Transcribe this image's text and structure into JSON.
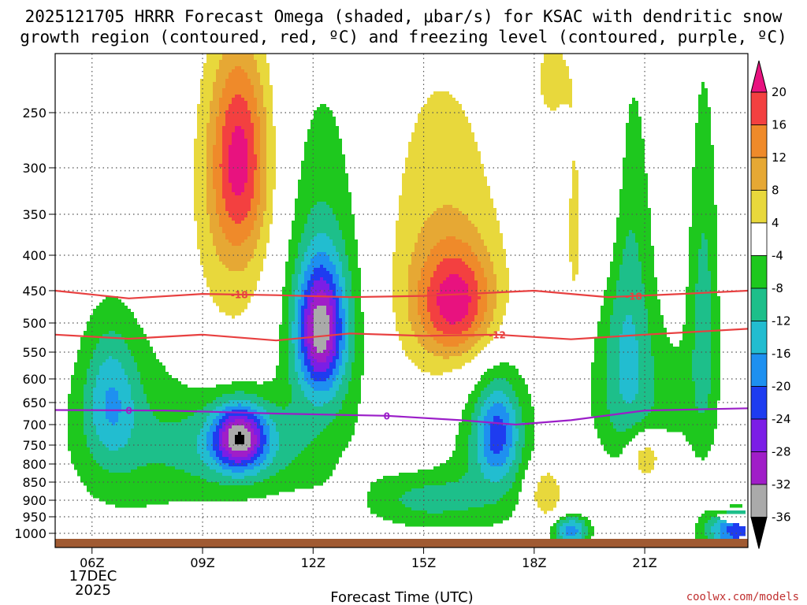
{
  "chart_data": {
    "type": "heatmap",
    "title_line1": "2025121705 HRRR Forecast Omega (shaded, μbar/s) for KSAC with dendritic snow",
    "title_line2": "growth region (contoured, red, ºC) and freezing level (contoured, purple, ºC)",
    "xlabel": "Forecast Time (UTC)",
    "x_ticks": [
      {
        "hour": 6,
        "label": "06Z"
      },
      {
        "hour": 9,
        "label": "09Z"
      },
      {
        "hour": 12,
        "label": "12Z"
      },
      {
        "hour": 15,
        "label": "15Z"
      },
      {
        "hour": 18,
        "label": "18Z"
      },
      {
        "hour": 21,
        "label": "21Z"
      }
    ],
    "date_label": [
      "17DEC",
      "2025"
    ],
    "xlim": [
      5,
      23.8
    ],
    "y_ticks": [
      250,
      300,
      350,
      400,
      450,
      500,
      550,
      600,
      650,
      700,
      750,
      800,
      850,
      900,
      950,
      1000
    ],
    "ylim_hpa": [
      200,
      1025
    ],
    "colorbar": {
      "labels": [
        "20",
        "16",
        "12",
        "8",
        "4",
        "-4",
        "-8",
        "-12",
        "-16",
        "-20",
        "-24",
        "-28",
        "-32",
        "-36"
      ],
      "bands": [
        {
          "min": 20,
          "max": 999,
          "color": "#e8127f"
        },
        {
          "min": 16,
          "max": 20,
          "color": "#f34040"
        },
        {
          "min": 12,
          "max": 16,
          "color": "#ef8a2a"
        },
        {
          "min": 8,
          "max": 12,
          "color": "#e6a834"
        },
        {
          "min": 4,
          "max": 8,
          "color": "#e8d83c"
        },
        {
          "min": -4,
          "max": 4,
          "color": "#ffffff"
        },
        {
          "min": -8,
          "max": -4,
          "color": "#1ec81e"
        },
        {
          "min": -12,
          "max": -8,
          "color": "#1dbf8a"
        },
        {
          "min": -16,
          "max": -12,
          "color": "#22bdd0"
        },
        {
          "min": -20,
          "max": -16,
          "color": "#1e90f0"
        },
        {
          "min": -24,
          "max": -20,
          "color": "#1e3cf0"
        },
        {
          "min": -28,
          "max": -24,
          "color": "#7b1ee6"
        },
        {
          "min": -32,
          "max": -28,
          "color": "#a01ec8"
        },
        {
          "min": -36,
          "max": -32,
          "color": "#aaaaaa"
        },
        {
          "min": -999,
          "max": -36,
          "color": "#000000"
        }
      ]
    },
    "omega_features": [
      {
        "hour": 10.0,
        "hpa": 290,
        "amp": 17.5,
        "sx": 0.55,
        "sy": 70
      },
      {
        "hour": 9.8,
        "hpa": 380,
        "amp": 6,
        "sx": 0.9,
        "sy": 140
      },
      {
        "hour": 15.9,
        "hpa": 470,
        "amp": 18,
        "sx": 0.75,
        "sy": 60
      },
      {
        "hour": 15.5,
        "hpa": 400,
        "amp": 7,
        "sx": 1.3,
        "sy": 160
      },
      {
        "hour": 20.0,
        "hpa": 300,
        "amp": 6,
        "sx": 0.35,
        "sy": 110
      },
      {
        "hour": 19.1,
        "hpa": 380,
        "amp": 5,
        "sx": 0.2,
        "sy": 110
      },
      {
        "hour": 18.3,
        "hpa": 880,
        "amp": 9,
        "sx": 0.35,
        "sy": 60
      },
      {
        "hour": 21.0,
        "hpa": 780,
        "amp": 11,
        "sx": 0.35,
        "sy": 45
      },
      {
        "hour": 18.5,
        "hpa": 220,
        "amp": 5,
        "sx": 0.4,
        "sy": 35
      },
      {
        "hour": 13.0,
        "hpa": 880,
        "amp": 5,
        "sx": 0.25,
        "sy": 55
      },
      {
        "hour": 12.2,
        "hpa": 510,
        "amp": -27,
        "sx": 0.45,
        "sy": 75
      },
      {
        "hour": 12.3,
        "hpa": 500,
        "amp": -9,
        "sx": 0.9,
        "sy": 210
      },
      {
        "hour": 10.0,
        "hpa": 730,
        "amp": -26,
        "sx": 0.5,
        "sy": 55
      },
      {
        "hour": 10.0,
        "hpa": 760,
        "amp": -11,
        "sx": 1.3,
        "sy": 90
      },
      {
        "hour": 6.5,
        "hpa": 640,
        "amp": -11,
        "sx": 0.5,
        "sy": 100
      },
      {
        "hour": 7.0,
        "hpa": 730,
        "amp": -7,
        "sx": 1.4,
        "sy": 170
      },
      {
        "hour": 17.0,
        "hpa": 720,
        "amp": -15,
        "sx": 0.4,
        "sy": 80
      },
      {
        "hour": 16.9,
        "hpa": 740,
        "amp": -8,
        "sx": 0.9,
        "sy": 160
      },
      {
        "hour": 15.0,
        "hpa": 900,
        "amp": -9,
        "sx": 1.2,
        "sy": 60
      },
      {
        "hour": 19.0,
        "hpa": 990,
        "amp": -18,
        "sx": 0.35,
        "sy": 30
      },
      {
        "hour": 23.5,
        "hpa": 990,
        "amp": -22,
        "sx": 0.6,
        "sy": 40
      },
      {
        "hour": 20.5,
        "hpa": 470,
        "amp": -10,
        "sx": 0.5,
        "sy": 200
      },
      {
        "hour": 22.6,
        "hpa": 480,
        "amp": -9,
        "sx": 0.3,
        "sy": 200
      },
      {
        "hour": 21.0,
        "hpa": 640,
        "amp": -6,
        "sx": 1.2,
        "sy": 120
      }
    ],
    "contours": [
      {
        "name": "dgz-minus18",
        "label": "-18",
        "color": "#e84040",
        "label_hour": 10.0,
        "points": [
          [
            5,
            450
          ],
          [
            7,
            462
          ],
          [
            9,
            455
          ],
          [
            11,
            457
          ],
          [
            13,
            460
          ],
          [
            15,
            458
          ],
          [
            18,
            450
          ],
          [
            20,
            460
          ],
          [
            22,
            455
          ],
          [
            23.8,
            450
          ]
        ]
      },
      {
        "name": "dgz-minus12",
        "label": "-12",
        "color": "#e84040",
        "label_hour": 17.0,
        "points": [
          [
            5,
            520
          ],
          [
            7,
            527
          ],
          [
            9,
            520
          ],
          [
            11,
            530
          ],
          [
            13,
            518
          ],
          [
            15,
            522
          ],
          [
            17,
            520
          ],
          [
            19,
            528
          ],
          [
            21,
            520
          ],
          [
            23.8,
            510
          ]
        ]
      },
      {
        "name": "freezing-level",
        "label": "0",
        "color": "#9b1ec8",
        "label_hour": 7.0,
        "points": [
          [
            5,
            667
          ],
          [
            8,
            668
          ],
          [
            11,
            675
          ],
          [
            14,
            680
          ],
          [
            16,
            690
          ],
          [
            17.5,
            700
          ],
          [
            19,
            690
          ],
          [
            21,
            668
          ],
          [
            23.8,
            663
          ]
        ]
      }
    ],
    "zero_label2_hour": 14.0,
    "colors": {
      "terrain": "#a05a32",
      "grid": "#555555",
      "frame": "#000000"
    }
  },
  "credit": "coolwx.com/models"
}
